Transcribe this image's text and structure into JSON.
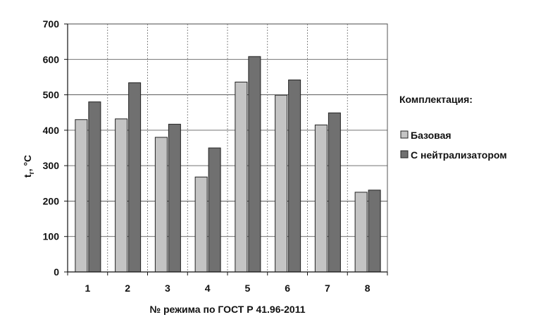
{
  "chart_data": {
    "type": "bar",
    "categories": [
      "1",
      "2",
      "3",
      "4",
      "5",
      "6",
      "7",
      "8"
    ],
    "series": [
      {
        "name": "Базовая",
        "color": "#c4c4c4",
        "values": [
          430,
          432,
          380,
          268,
          536,
          499,
          415,
          225
        ]
      },
      {
        "name": "С нейтрализатором",
        "color": "#707070",
        "values": [
          480,
          534,
          417,
          350,
          608,
          542,
          449,
          231
        ]
      }
    ],
    "title": "",
    "xlabel": "№ режима по ГОСТ Р 41.96-2011",
    "ylabel_main": "t",
    "ylabel_sub": "г",
    "ylabel_unit": ", °С",
    "ylim": [
      0,
      700
    ],
    "yticks": [
      0,
      100,
      200,
      300,
      400,
      500,
      600,
      700
    ],
    "grid": true,
    "legend": {
      "title": "Комплектация:",
      "position": "right"
    }
  }
}
